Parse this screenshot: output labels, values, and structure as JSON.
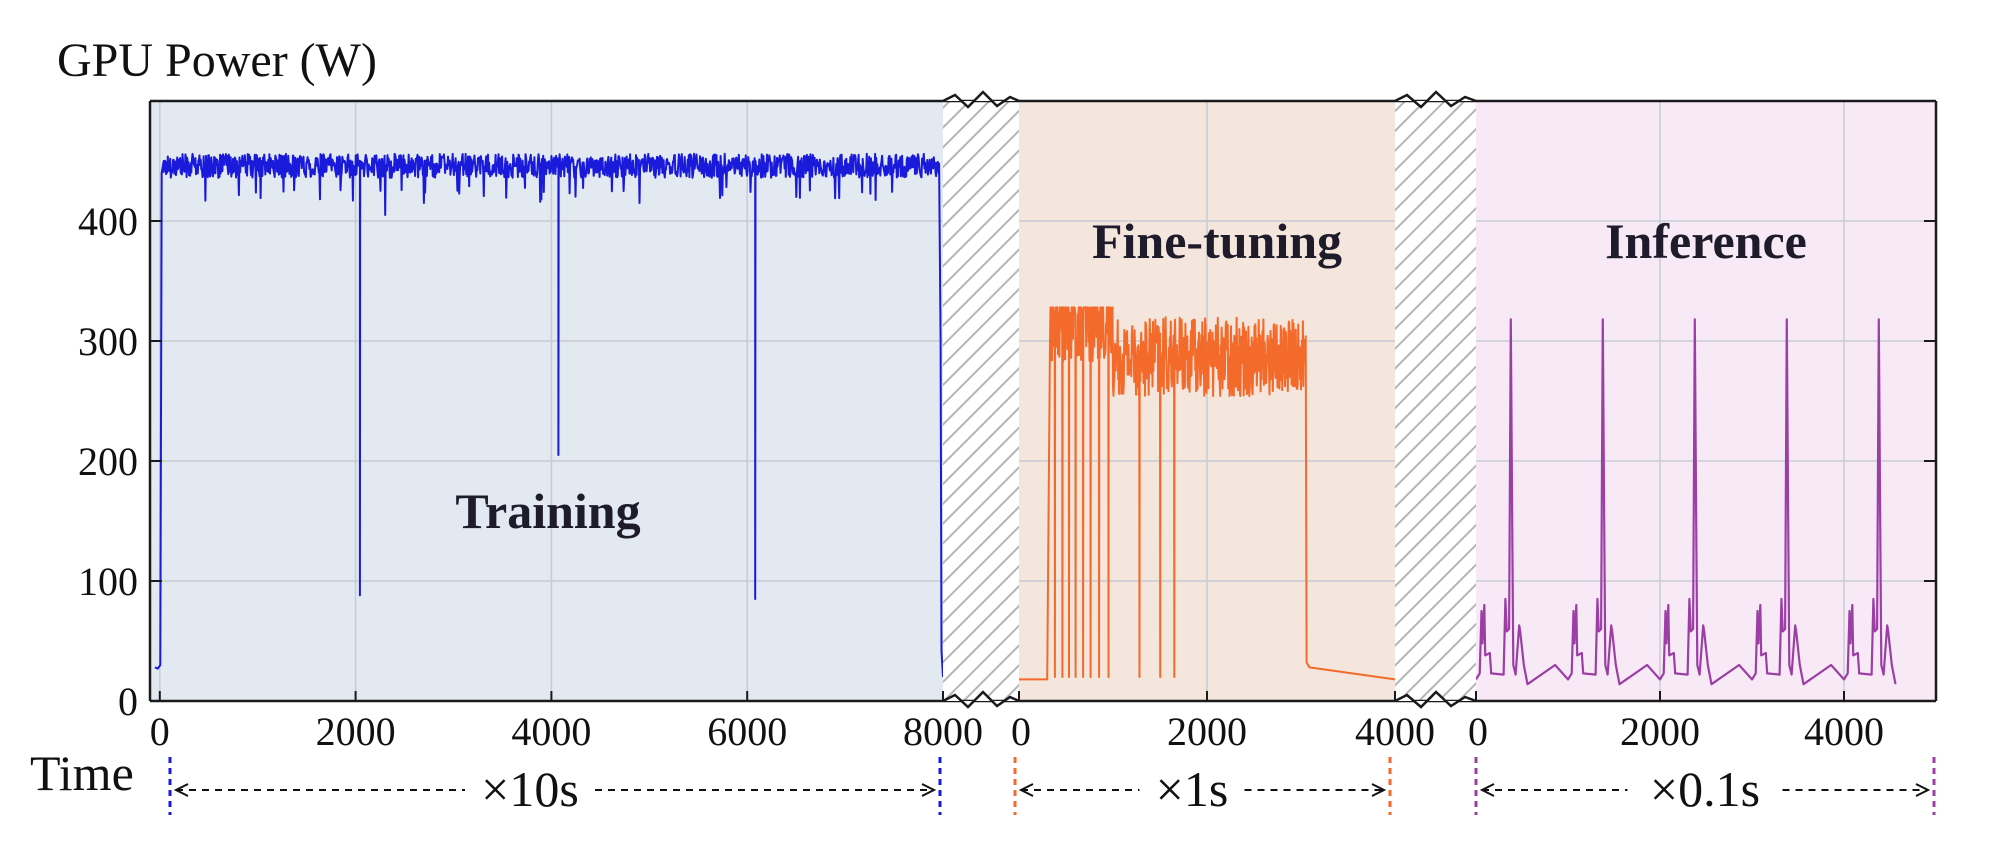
{
  "y_axis_title": "GPU Power (W)",
  "time_label": "Time",
  "chart_data": [
    {
      "type": "line",
      "name": "Training",
      "color": "#1a1adb",
      "background": "#e2e9f1",
      "xlim": [
        -100,
        8000
      ],
      "ylim": [
        0,
        500
      ],
      "xticks": [
        0,
        2000,
        4000,
        6000,
        8000
      ],
      "yticks": [
        0,
        100,
        200,
        300,
        400
      ],
      "ytick_labels": [
        "0",
        "100",
        "200",
        "300",
        "400"
      ],
      "scale_label": "×10s",
      "baseline": 450,
      "noise": [
        -14,
        6
      ],
      "points": [
        [
          -50,
          28
        ],
        [
          -20,
          27
        ],
        [
          5,
          30
        ],
        [
          20,
          440
        ],
        [
          40,
          450
        ],
        [
          2000,
          449
        ],
        [
          2040,
          88
        ],
        [
          2085,
          449
        ],
        [
          4040,
          449
        ],
        [
          4070,
          205
        ],
        [
          4105,
          449
        ],
        [
          6040,
          449
        ],
        [
          6080,
          85
        ],
        [
          6120,
          449
        ],
        [
          7960,
          452
        ],
        [
          7975,
          300
        ],
        [
          7985,
          42
        ],
        [
          8000,
          20
        ]
      ],
      "dips": [
        [
          2300,
          405
        ],
        [
          2700,
          415
        ],
        [
          4900,
          415
        ],
        [
          6500,
          420
        ]
      ]
    },
    {
      "type": "line",
      "name": "Fine-tuning",
      "color": "#f46a2a",
      "background": "#f5e6dd",
      "xlim": [
        0,
        4000
      ],
      "ylim": [
        0,
        500
      ],
      "xticks": [
        0,
        2000,
        4000
      ],
      "scale_label": "×1s",
      "baseline": 272,
      "noise": [
        -18,
        48
      ],
      "points": [
        [
          0,
          18
        ],
        [
          300,
          18
        ],
        [
          330,
          310
        ],
        [
          3050,
          285
        ],
        [
          3060,
          32
        ],
        [
          3090,
          28
        ],
        [
          3300,
          25
        ],
        [
          4000,
          18
        ]
      ],
      "dropouts": [
        380,
        460,
        530,
        600,
        680,
        760,
        850,
        950,
        1280,
        1500,
        1650
      ]
    },
    {
      "type": "line",
      "name": "Inference",
      "color": "#9b3fa5",
      "background": "#f7eaf6",
      "xlim": [
        0,
        5000
      ],
      "ylim": [
        0,
        500
      ],
      "xticks": [
        0,
        2000,
        4000
      ],
      "scale_label": "×0.1s",
      "baseline": 18,
      "spike_peak": 318,
      "cycles": [
        0,
        1000,
        2000,
        3000,
        4000
      ]
    }
  ]
}
